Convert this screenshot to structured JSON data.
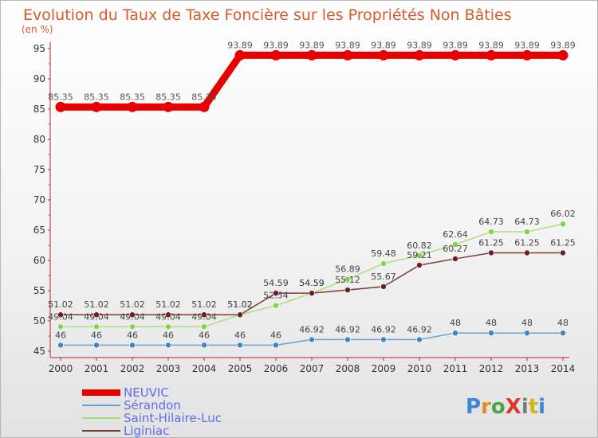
{
  "chart_data": {
    "type": "line",
    "title": "Evolution du Taux de Taxe Foncière sur les Propriétés Non Bâties",
    "unit_label": "(en %)",
    "x": [
      "2000",
      "2001",
      "2002",
      "2003",
      "2004",
      "2005",
      "2006",
      "2007",
      "2008",
      "2009",
      "2010",
      "2011",
      "2012",
      "2013",
      "2014"
    ],
    "ylim": [
      45,
      95
    ],
    "yticks": [
      45,
      50,
      55,
      60,
      65,
      70,
      75,
      80,
      85,
      90,
      95
    ],
    "grid": false,
    "legend_position": "bottom-left",
    "series": [
      {
        "name": "NEUVIC",
        "color": "#e80000",
        "line_width": 9,
        "values": [
          85.35,
          85.35,
          85.35,
          85.35,
          85.35,
          93.89,
          93.89,
          93.89,
          93.89,
          93.89,
          93.89,
          93.89,
          93.89,
          93.89,
          93.89
        ],
        "labels": [
          "85.35",
          "85.35",
          "85.35",
          "85.35",
          "85.35",
          "93.89",
          "93.89",
          "93.89",
          "93.89",
          "93.89",
          "93.89",
          "93.89",
          "93.89",
          "93.89",
          "93.89"
        ]
      },
      {
        "name": "Sérandon",
        "color": "#6ea3d0",
        "marker": "#3d85c6",
        "line_width": 1.5,
        "values": [
          46,
          46,
          46,
          46,
          46,
          46,
          46,
          46.92,
          46.92,
          46.92,
          46.92,
          48,
          48,
          48,
          48
        ],
        "labels": [
          "46",
          "46",
          "46",
          "46",
          "46",
          "46",
          "46",
          "46.92",
          "46.92",
          "46.92",
          "46.92",
          "48",
          "48",
          "48",
          "48"
        ]
      },
      {
        "name": "Saint-Hilaire-Luc",
        "color": "#a6e07a",
        "marker": "#7ed548",
        "line_width": 1.5,
        "values": [
          49.04,
          49.04,
          49.04,
          49.04,
          49.04,
          51.02,
          52.54,
          54.59,
          56.89,
          59.48,
          60.82,
          62.64,
          64.73,
          64.73,
          66.02
        ],
        "labels": [
          "49.04",
          "49.04",
          "49.04",
          "49.04",
          "49.04",
          "51.02",
          "52.54",
          "54.59",
          "56.89",
          "59.48",
          "60.82",
          "62.64",
          "64.73",
          "64.73",
          "66.02"
        ]
      },
      {
        "name": "Liginiac",
        "color": "#7a3b3b",
        "marker": "#6b1f24",
        "line_width": 1.5,
        "values": [
          51.02,
          51.02,
          51.02,
          51.02,
          51.02,
          51.02,
          54.59,
          54.59,
          55.12,
          55.67,
          59.21,
          60.27,
          61.25,
          61.25,
          61.25
        ],
        "labels": [
          "51.02",
          "51.02",
          "51.02",
          "51.02",
          "51.02",
          "51.02",
          "54.59",
          "54.59",
          "55.12",
          "55.67",
          "59.21",
          "60.27",
          "61.25",
          "61.25",
          "61.25"
        ]
      }
    ]
  },
  "logo": {
    "text": "ProXiti"
  }
}
